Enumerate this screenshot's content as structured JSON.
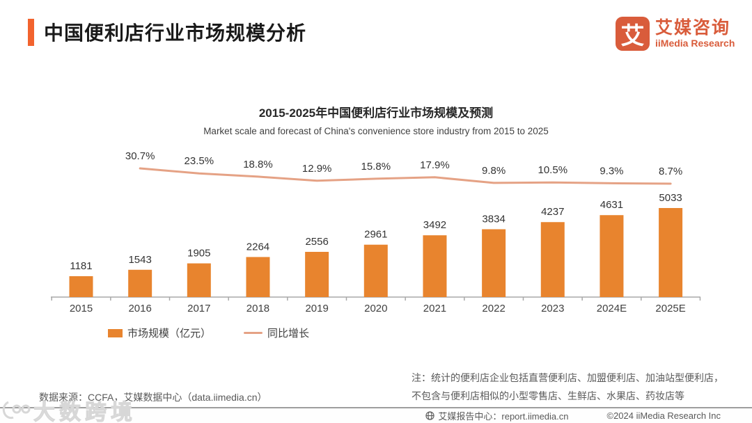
{
  "header": {
    "title": "中国便利店行业市场规模分析",
    "logo": {
      "icon_char": "艾",
      "name_cn": "艾媒咨询",
      "name_en": "iiMedia Research"
    }
  },
  "colors": {
    "accent": "#F2632E",
    "bar": "#E8842E",
    "line": "#E5A285",
    "logo": "#D95C3B",
    "axis": "#A8A8A8"
  },
  "chart_data": {
    "type": "bar",
    "title": "2015-2025年中国便利店行业市场规模及预测",
    "subtitle": "Market scale and forecast of China's convenience store industry from 2015 to 2025",
    "categories": [
      "2015",
      "2016",
      "2017",
      "2018",
      "2019",
      "2020",
      "2021",
      "2022",
      "2023",
      "2024E",
      "2025E"
    ],
    "series": [
      {
        "name": "市场规模（亿元）",
        "type": "bar",
        "values": [
          1181,
          1543,
          1905,
          2264,
          2556,
          2961,
          3492,
          3834,
          4237,
          4631,
          5033
        ]
      },
      {
        "name": "同比增长",
        "type": "line",
        "unit": "%",
        "values": [
          null,
          30.7,
          23.5,
          18.8,
          12.9,
          15.8,
          17.9,
          9.8,
          10.5,
          9.3,
          8.7
        ]
      }
    ],
    "legend": [
      "市场规模（亿元）",
      "同比增长"
    ],
    "ylim": [
      0,
      5100
    ],
    "grid": false,
    "legend_position": "bottom-left",
    "data_labels": true
  },
  "footer": {
    "datasource": "数据来源：CCFA，艾媒数据中心（data.iimedia.cn）",
    "note_line1": "注：统计的便利店企业包括直营便利店、加盟便利店、加油站型便利店，",
    "note_line2": "不包含与便利店相似的小型零售店、生鲜店、水果店、药妆店等",
    "report_center": "艾媒报告中心：report.iimedia.cn",
    "copyright": "©2024  iiMedia Research Inc",
    "watermark": "大数跨境"
  }
}
